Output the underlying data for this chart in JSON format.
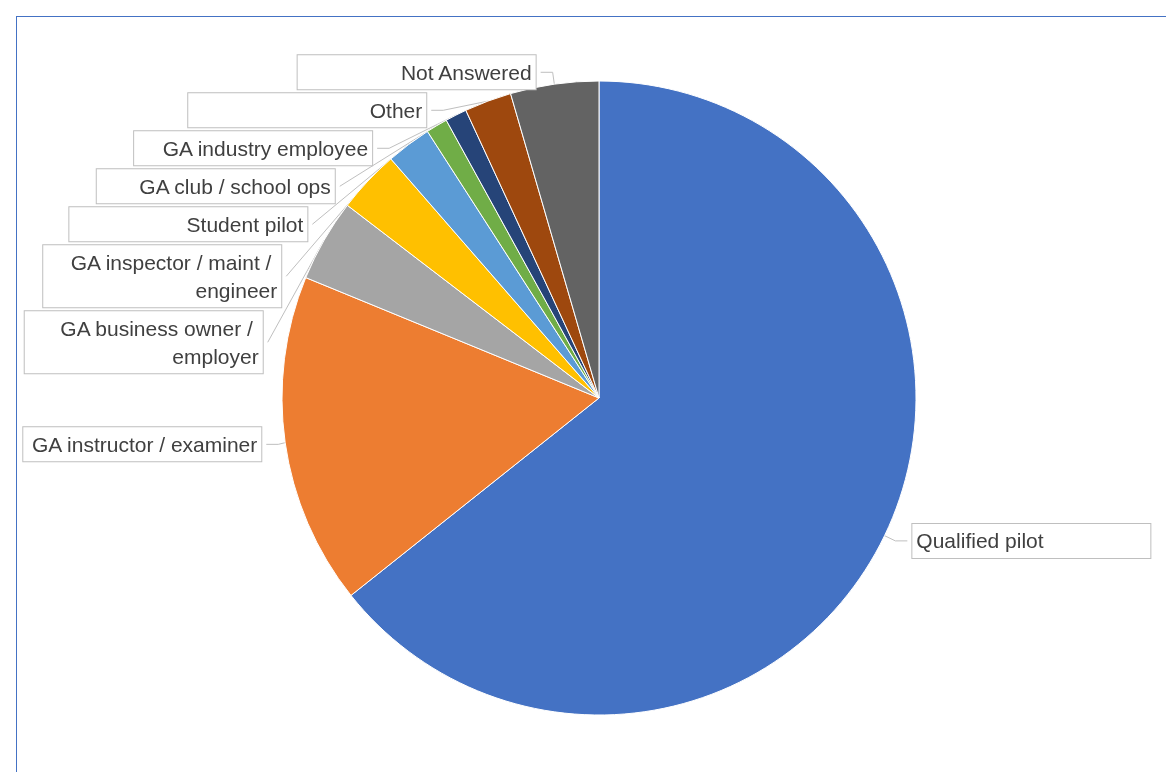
{
  "chart_data": {
    "type": "pie",
    "categories": [
      "Qualified pilot",
      "GA instructor / examiner",
      "GA business owner / employer",
      "GA inspector / maint / engineer",
      "Student pilot",
      "GA club / school ops",
      "GA industry employee",
      "Other",
      "Not Answered"
    ],
    "values": [
      64.3,
      16.9,
      4.2,
      3.2,
      2.3,
      1.1,
      1.1,
      2.4,
      4.5
    ],
    "colors": [
      "#4472c4",
      "#ed7d31",
      "#a5a5a5",
      "#ffc000",
      "#5b9bd5",
      "#70ad47",
      "#264478",
      "#9e480e",
      "#636363"
    ],
    "legend": false
  }
}
